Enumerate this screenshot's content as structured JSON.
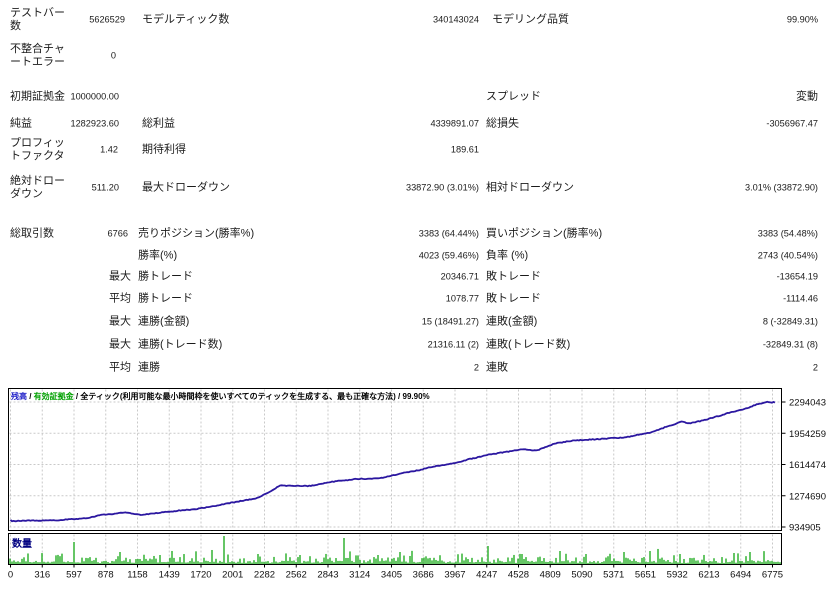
{
  "report": {
    "stats_rows": [
      {
        "c1": "テストバー数",
        "c2": "5626529",
        "c3": "モデルティック数",
        "c4": "340143024",
        "c5": "モデリング品質",
        "c6": "99.90%"
      },
      {
        "c1": "不整合チャートエラー",
        "c2": "0",
        "c3": "",
        "c4": "",
        "c5": "",
        "c6": ""
      },
      {
        "c1": "初期証拠金",
        "c2": "1000000.00",
        "c3": "",
        "c4": "",
        "c5": "スプレッド",
        "c6": "変動"
      },
      {
        "c1": "純益",
        "c2": "1282923.60",
        "c3": "総利益",
        "c4": "4339891.07",
        "c5": "総損失",
        "c6": "-3056967.47"
      },
      {
        "c1": "プロフィットファクタ",
        "c2": "1.42",
        "c3": "期待利得",
        "c4": "189.61",
        "c5": "",
        "c6": ""
      },
      {
        "c1": "絶対ドローダウン",
        "c2": "511.20",
        "c3": "最大ドローダウン",
        "c4": "33872.90 (3.01%)",
        "c5": "相対ドローダウン",
        "c6": "3.01% (33872.90)"
      },
      {
        "c1": "総取引数",
        "c2": "6766",
        "c3": "売りポジション(勝率%)",
        "c4": "3383 (64.44%)",
        "c5": "買いポジション(勝率%)",
        "c6": "3383 (54.48%)"
      },
      {
        "c1": "",
        "c2": "",
        "c3": "勝率(%)",
        "c4": "4023 (59.46%)",
        "c5": "負率 (%)",
        "c6": "2743 (40.54%)"
      },
      {
        "c1": "",
        "c2": "最大",
        "c3": "勝トレード",
        "c4": "20346.71",
        "c5": "敗トレード",
        "c6": "-13654.19"
      },
      {
        "c1": "",
        "c2": "平均",
        "c3": "勝トレード",
        "c4": "1078.77",
        "c5": "敗トレード",
        "c6": "-1114.46"
      },
      {
        "c1": "",
        "c2": "最大",
        "c3": "連勝(金額)",
        "c4": "15 (18491.27)",
        "c5": "連敗(金額)",
        "c6": "8 (-32849.31)"
      },
      {
        "c1": "",
        "c2": "最大",
        "c3": "連勝(トレード数)",
        "c4": "21316.11 (2)",
        "c5": "連敗(トレード数)",
        "c6": "-32849.31 (8)"
      },
      {
        "c1": "",
        "c2": "平均",
        "c3": "連勝",
        "c4": "2",
        "c5": "連敗",
        "c6": "2"
      }
    ]
  },
  "chart_data": {
    "type": "line",
    "title_segments": [
      {
        "text": "残高",
        "color": "#2020c8"
      },
      {
        "text": " / ",
        "color": "#000000"
      },
      {
        "text": "有効証拠金",
        "color": "#00a000"
      },
      {
        "text": " / ",
        "color": "#000000"
      },
      {
        "text": "全ティック(利用可能な最小時間枠を使いすべてのティックを生成する、最も正確な方法) / 99.90%",
        "color": "#000000"
      }
    ],
    "ylabels": [
      "2294043",
      "1954259",
      "1614474",
      "1274690",
      "934905"
    ],
    "xlabels": [
      "0",
      "316",
      "597",
      "878",
      "1158",
      "1439",
      "1720",
      "2001",
      "2282",
      "2562",
      "2843",
      "3124",
      "3405",
      "3686",
      "3967",
      "4247",
      "4528",
      "4809",
      "5090",
      "5371",
      "5651",
      "5932",
      "6213",
      "6494",
      "6775"
    ],
    "y_min": 934905,
    "y_max": 2294043,
    "initial_deposit": 1000000,
    "final_balance": 2282923.6,
    "line_color": "#2b17a0",
    "grid_color": "#c9c9c9",
    "equity_anchors": [
      [
        0.0,
        1000000
      ],
      [
        0.035,
        1004000
      ],
      [
        0.075,
        1015000
      ],
      [
        0.105,
        1040000
      ],
      [
        0.132,
        1080000
      ],
      [
        0.15,
        1098000
      ],
      [
        0.172,
        1068000
      ],
      [
        0.195,
        1090000
      ],
      [
        0.225,
        1115000
      ],
      [
        0.255,
        1145000
      ],
      [
        0.29,
        1200000
      ],
      [
        0.32,
        1242000
      ],
      [
        0.338,
        1305000
      ],
      [
        0.352,
        1385000
      ],
      [
        0.39,
        1380000
      ],
      [
        0.425,
        1430000
      ],
      [
        0.455,
        1459000
      ],
      [
        0.483,
        1464000
      ],
      [
        0.515,
        1525000
      ],
      [
        0.55,
        1585000
      ],
      [
        0.58,
        1628000
      ],
      [
        0.615,
        1702000
      ],
      [
        0.645,
        1748000
      ],
      [
        0.668,
        1778000
      ],
      [
        0.688,
        1766000
      ],
      [
        0.71,
        1835000
      ],
      [
        0.735,
        1878000
      ],
      [
        0.775,
        1892000
      ],
      [
        0.805,
        1912000
      ],
      [
        0.835,
        1958000
      ],
      [
        0.858,
        2022000
      ],
      [
        0.878,
        2078000
      ],
      [
        0.888,
        2062000
      ],
      [
        0.908,
        2098000
      ],
      [
        0.938,
        2172000
      ],
      [
        0.958,
        2212000
      ],
      [
        0.978,
        2272000
      ],
      [
        0.988,
        2294043
      ],
      [
        1.0,
        2282924
      ]
    ],
    "volume": {
      "label": "数量",
      "label_color": "#000080",
      "bar_color": "#00a000",
      "seed": 20,
      "count": 386,
      "spikes": [
        [
          0.083,
          22
        ],
        [
          0.143,
          12
        ],
        [
          0.195,
          9
        ],
        [
          0.279,
          28
        ],
        [
          0.322,
          10
        ],
        [
          0.377,
          9
        ],
        [
          0.435,
          26
        ],
        [
          0.478,
          9
        ],
        [
          0.506,
          12
        ],
        [
          0.62,
          18
        ],
        [
          0.665,
          10
        ],
        [
          0.714,
          13
        ],
        [
          0.747,
          10
        ],
        [
          0.798,
          12
        ],
        [
          0.83,
          13
        ],
        [
          0.87,
          10
        ],
        [
          0.94,
          11
        ],
        [
          0.96,
          12
        ]
      ]
    }
  }
}
